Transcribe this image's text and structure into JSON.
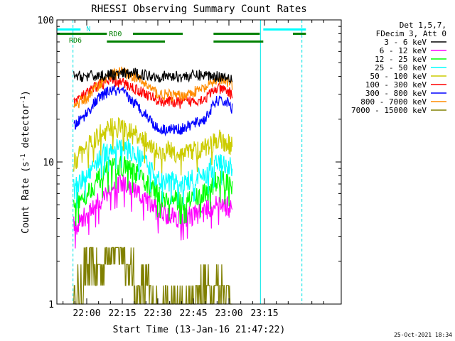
{
  "chart_data": {
    "type": "line",
    "title": "RHESSI Observing Summary Count Rates",
    "xlabel": "Start Time (13-Jan-16 21:47:22)",
    "ylabel_main": "Count Rate (s",
    "ylabel_sup1": "-1",
    "ylabel_mid": " detector",
    "ylabel_sup2": "-1",
    "ylabel_end": ")",
    "y_scale": "log",
    "ylim": [
      1,
      100
    ],
    "xlim_minutes": [
      -12.6,
      107.4
    ],
    "x_ticks": [
      "22:00",
      "22:15",
      "22:30",
      "22:45",
      "23:00",
      "23:15"
    ],
    "x_tick_minutes": [
      0,
      15,
      30,
      45,
      60,
      75
    ],
    "y_ticks": [
      "1",
      "10",
      "100"
    ],
    "y_tick_values": [
      1,
      10,
      100
    ],
    "legend_header": [
      "Det 1,5,7,",
      "FDecim 3, Att 0"
    ],
    "legend_placement": "right",
    "timestamp": "25-Oct-2021 18:34",
    "data_window_minutes": [
      -5.5,
      61.5
    ],
    "series": [
      {
        "name": "3 - 6 keV",
        "color": "#000000",
        "x": [
          -5,
          0,
          10,
          20,
          30,
          40,
          50,
          55,
          60,
          61
        ],
        "values": [
          40,
          40,
          41,
          42,
          40,
          40,
          41,
          40,
          40,
          39
        ]
      },
      {
        "name": "6 - 12 keV",
        "color": "#ff00ff",
        "x": [
          -5,
          0,
          5,
          10,
          15,
          20,
          30,
          40,
          50,
          55,
          60,
          61
        ],
        "values": [
          3.5,
          4.2,
          5.2,
          6.5,
          7.0,
          6.2,
          4.5,
          4.0,
          4.5,
          5.2,
          4.8,
          4.5
        ]
      },
      {
        "name": "12 - 25 keV",
        "color": "#00ff00",
        "x": [
          -5,
          0,
          5,
          10,
          15,
          20,
          30,
          40,
          50,
          55,
          60,
          61
        ],
        "values": [
          5.0,
          6.0,
          7.5,
          9.0,
          9.5,
          8.5,
          5.8,
          5.2,
          6.0,
          7.5,
          7.0,
          6.5
        ]
      },
      {
        "name": "25 - 50 keV",
        "color": "#00ffff",
        "x": [
          -5,
          0,
          5,
          10,
          15,
          20,
          30,
          40,
          50,
          55,
          60,
          61
        ],
        "values": [
          6.5,
          8.0,
          10.5,
          12.5,
          13.0,
          11.5,
          7.5,
          7.0,
          8.0,
          10.0,
          9.5,
          9.0
        ]
      },
      {
        "name": "50 - 100 keV",
        "color": "#cccc00",
        "x": [
          -5,
          0,
          5,
          10,
          15,
          20,
          30,
          40,
          50,
          55,
          60,
          61
        ],
        "values": [
          10.0,
          12.5,
          15.5,
          17.5,
          17.5,
          15.5,
          12.0,
          11.5,
          12.5,
          14.5,
          13.5,
          13.0
        ]
      },
      {
        "name": "100 - 300 keV",
        "color": "#ff0000",
        "x": [
          -5,
          0,
          5,
          10,
          15,
          20,
          30,
          40,
          50,
          55,
          60,
          61
        ],
        "values": [
          27,
          30,
          35,
          37,
          36,
          33,
          27,
          26,
          28,
          33,
          31,
          30
        ]
      },
      {
        "name": "300 - 800 keV",
        "color": "#0000ff",
        "x": [
          -5,
          0,
          5,
          10,
          15,
          20,
          30,
          40,
          50,
          55,
          60,
          61
        ],
        "values": [
          18,
          22,
          28,
          32,
          31,
          26,
          17,
          17,
          20,
          27,
          26,
          24
        ]
      },
      {
        "name": "800 - 7000 keV",
        "color": "#ff8c00",
        "x": [
          -5,
          0,
          5,
          10,
          15,
          20,
          30,
          40,
          50,
          55,
          60,
          61
        ],
        "values": [
          25,
          28,
          35,
          41,
          43,
          40,
          30,
          29,
          33,
          38,
          36,
          35
        ]
      },
      {
        "name": "7000 - 15000 keV",
        "color": "#808000",
        "x": [
          -5,
          0,
          5,
          10,
          15,
          20,
          25,
          30,
          40,
          50,
          55,
          60,
          61
        ],
        "values": [
          1.0,
          1.9,
          1.9,
          2.5,
          2.4,
          1.6,
          1.3,
          1.0,
          1.0,
          1.3,
          1.4,
          1.3,
          1.0
        ]
      }
    ],
    "annotations": {
      "night_label": "N",
      "rd0_label": "RD0",
      "rd6_label": "RD6",
      "night_bars": [
        [
          -12.6,
          -2.6
        ],
        [
          74.5,
          92.5
        ]
      ],
      "rd0_bars": [
        [
          -12.6,
          8.5
        ],
        [
          19.5,
          40.5
        ],
        [
          53.5,
          73
        ],
        [
          87,
          92.5
        ]
      ],
      "rd6_bars": [
        [
          8.5,
          33
        ],
        [
          53.5,
          74.5
        ]
      ],
      "cyan_solid_lines": [
        -12.6,
        73.3
      ],
      "cyan_dashed_lines": [
        -5.8,
        90.8
      ]
    }
  }
}
